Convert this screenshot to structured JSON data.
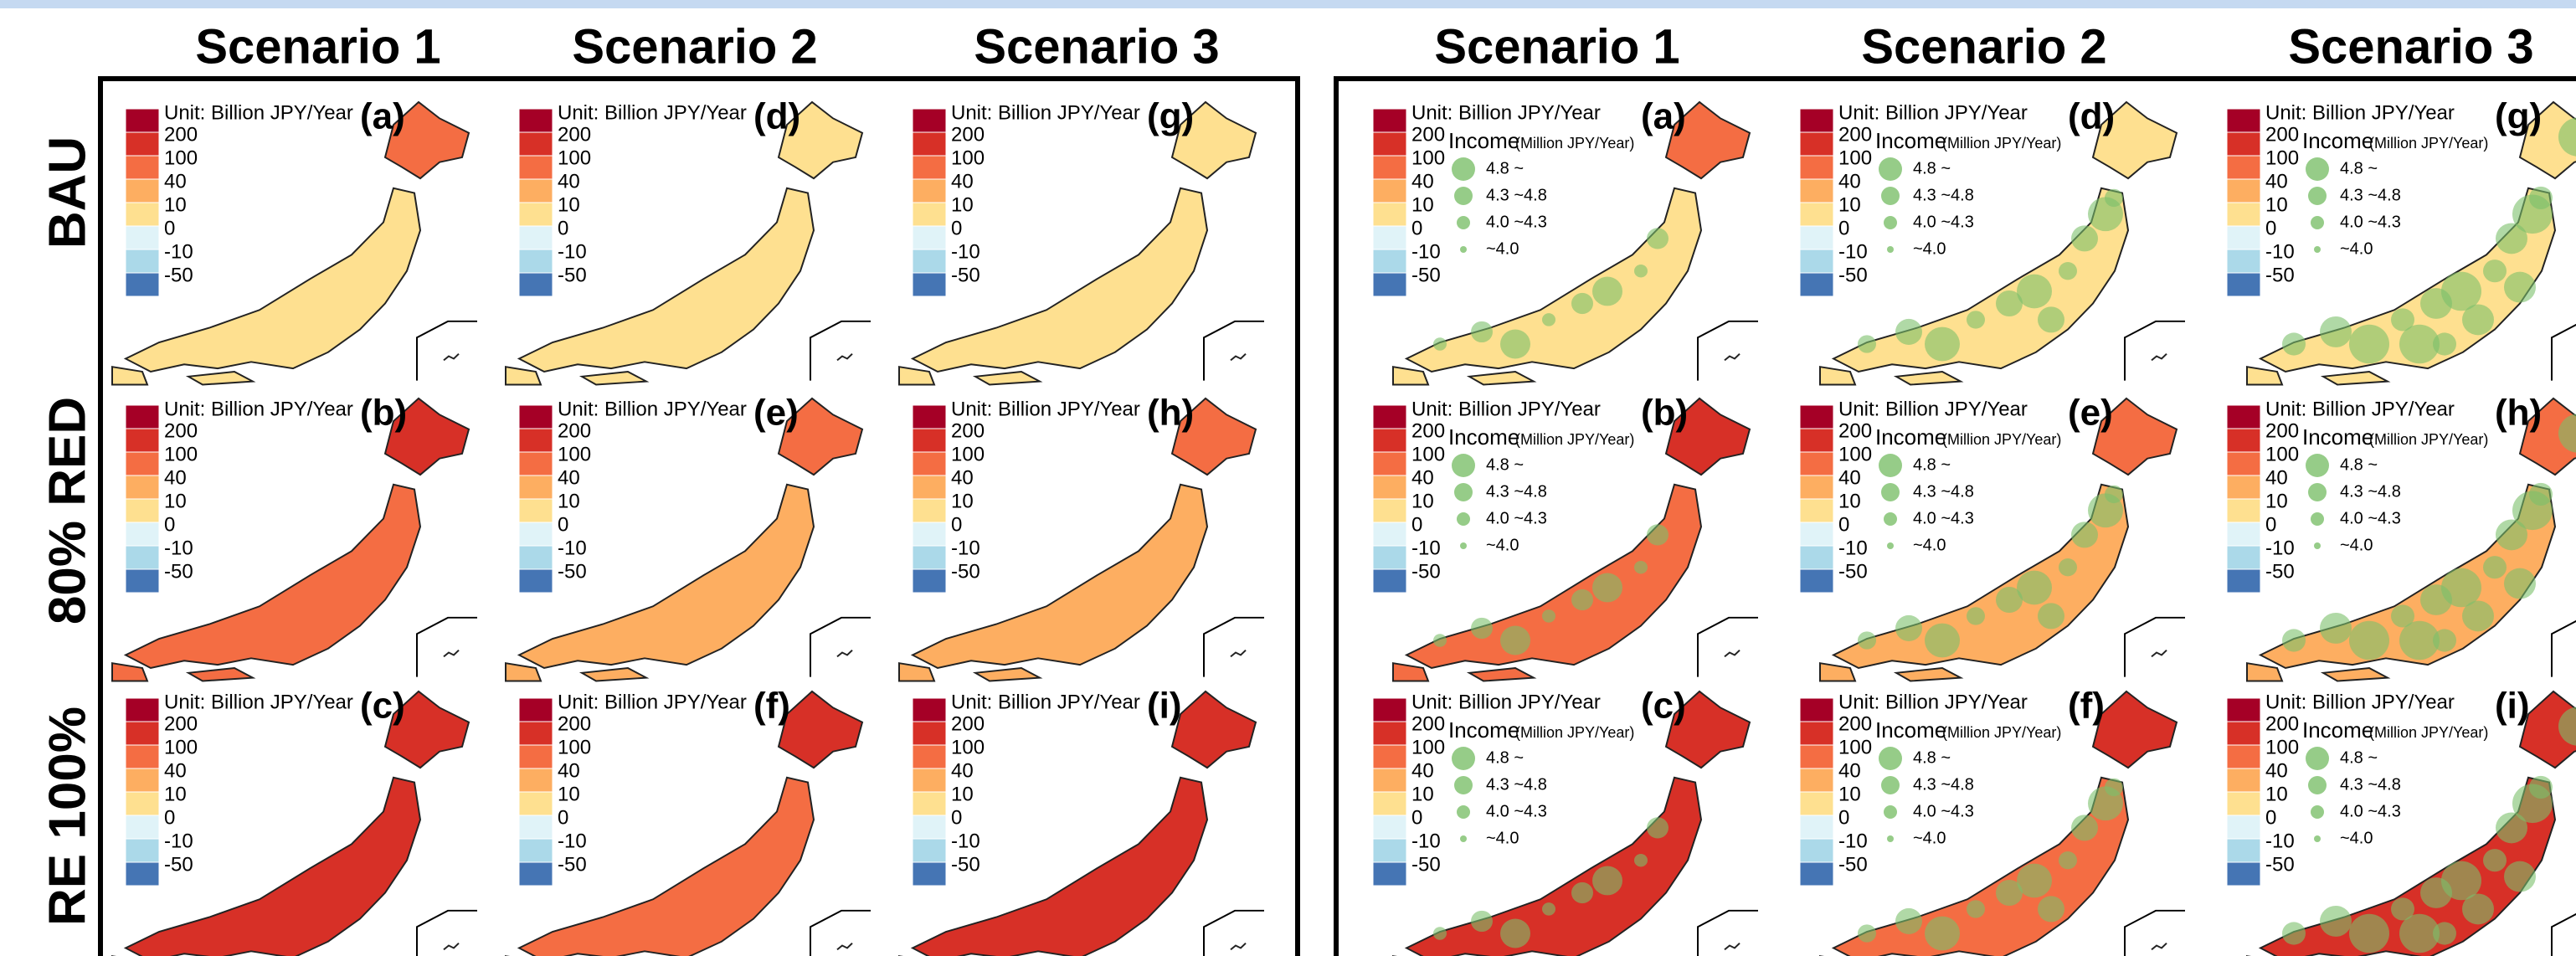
{
  "rows": [
    "BAU",
    "80% RED",
    "RE 100%"
  ],
  "legend": {
    "unit": "Unit: Billion JPY/Year",
    "labels": [
      "200",
      "100",
      "40",
      "10",
      "0",
      "-10",
      "-50"
    ],
    "colors": [
      "#a50026",
      "#d73027",
      "#f46d43",
      "#fdae61",
      "#fee090",
      "#e0f3f8",
      "#abd9e9",
      "#4575b4"
    ]
  },
  "income_legend": {
    "title": "Income",
    "unit": "(Million JPY/Year)",
    "labels": [
      "4.8 ~",
      "4.3 ~4.8",
      "4.0 ~4.3",
      "~4.0"
    ],
    "color": "#7cbf6a"
  },
  "left": {
    "columns": [
      "Scenario 1",
      "Scenario 2",
      "Scenario 3"
    ],
    "panels": [
      {
        "label": "(a)",
        "fill": "#fee090",
        "hokkaido": "#f46d43"
      },
      {
        "label": "(b)",
        "fill": "#f46d43",
        "hokkaido": "#d73027"
      },
      {
        "label": "(c)",
        "fill": "#d73027",
        "hokkaido": "#d73027"
      },
      {
        "label": "(d)",
        "fill": "#fee090",
        "hokkaido": "#fee090"
      },
      {
        "label": "(e)",
        "fill": "#fdae61",
        "hokkaido": "#f46d43"
      },
      {
        "label": "(f)",
        "fill": "#f46d43",
        "hokkaido": "#d73027"
      },
      {
        "label": "(g)",
        "fill": "#fee090",
        "hokkaido": "#fee090"
      },
      {
        "label": "(h)",
        "fill": "#fdae61",
        "hokkaido": "#f46d43"
      },
      {
        "label": "(i)",
        "fill": "#d73027",
        "hokkaido": "#d73027"
      }
    ]
  },
  "right": {
    "columns": [
      "Scenario 1",
      "Scenario 2",
      "Scenario 3"
    ],
    "panels": [
      {
        "label": "(a)",
        "fill": "#fee090",
        "hokkaido": "#f46d43"
      },
      {
        "label": "(b)",
        "fill": "#f46d43",
        "hokkaido": "#d73027"
      },
      {
        "label": "(c)",
        "fill": "#d73027",
        "hokkaido": "#d73027"
      },
      {
        "label": "(d)",
        "fill": "#fee090",
        "hokkaido": "#fee090"
      },
      {
        "label": "(e)",
        "fill": "#fdae61",
        "hokkaido": "#f46d43"
      },
      {
        "label": "(f)",
        "fill": "#f46d43",
        "hokkaido": "#d73027"
      },
      {
        "label": "(g)",
        "fill": "#fee090",
        "hokkaido": "#fee090"
      },
      {
        "label": "(h)",
        "fill": "#fdae61",
        "hokkaido": "#f46d43"
      },
      {
        "label": "(i)",
        "fill": "#d73027",
        "hokkaido": "#d73027"
      }
    ]
  }
}
